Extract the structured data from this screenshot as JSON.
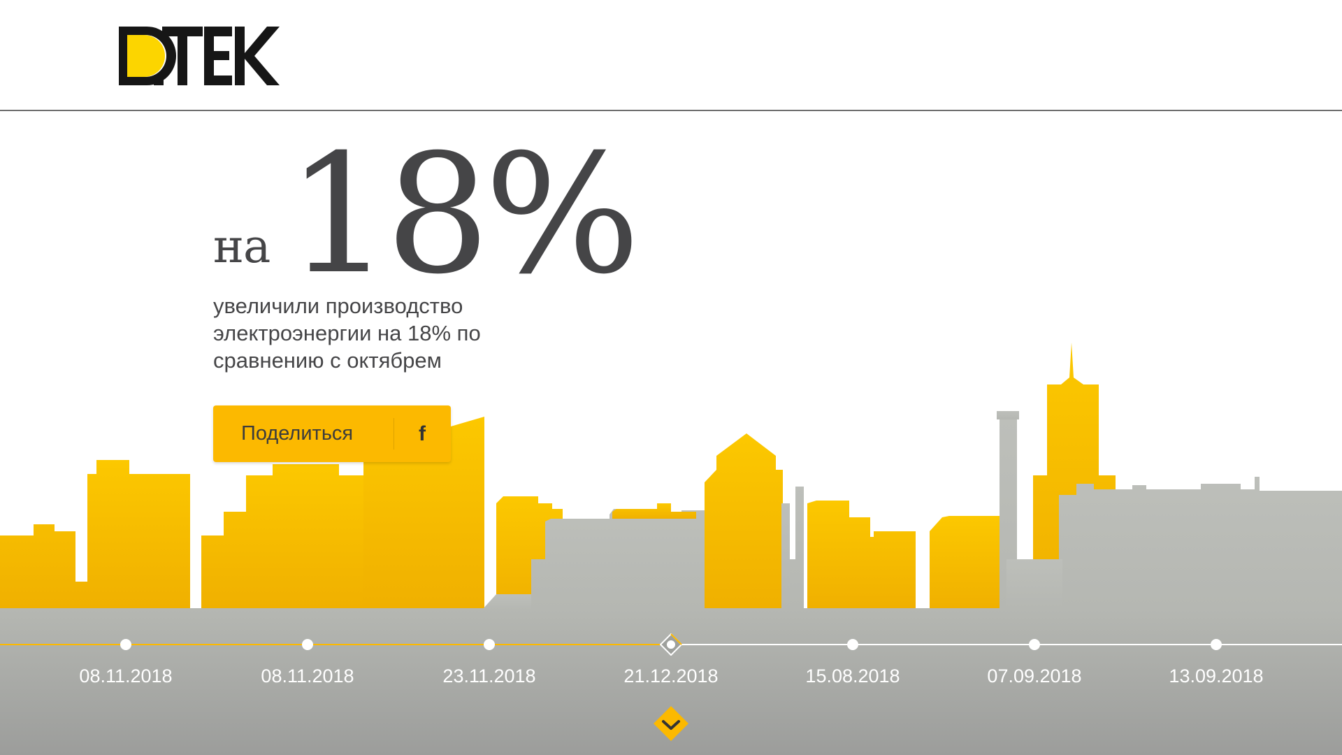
{
  "brand": {
    "logo_text": "D.TEK",
    "primary_color": "#fcb900",
    "text_color": "#454547"
  },
  "hero": {
    "prefix": "на",
    "number": "18%",
    "description": "увеличили производство электроэнергии на 18% по сравнению с октябрем"
  },
  "share": {
    "label": "Поделиться",
    "icon": "facebook-icon",
    "icon_glyph": "f"
  },
  "timeline": {
    "active_index": 3,
    "items": [
      {
        "date": "08.11.2018"
      },
      {
        "date": "08.11.2018"
      },
      {
        "date": "23.11.2018"
      },
      {
        "date": "21.12.2018"
      },
      {
        "date": "15.08.2018"
      },
      {
        "date": "07.09.2018"
      },
      {
        "date": "13.09.2018"
      }
    ]
  },
  "scroll": {
    "icon": "chevron-down-icon"
  }
}
